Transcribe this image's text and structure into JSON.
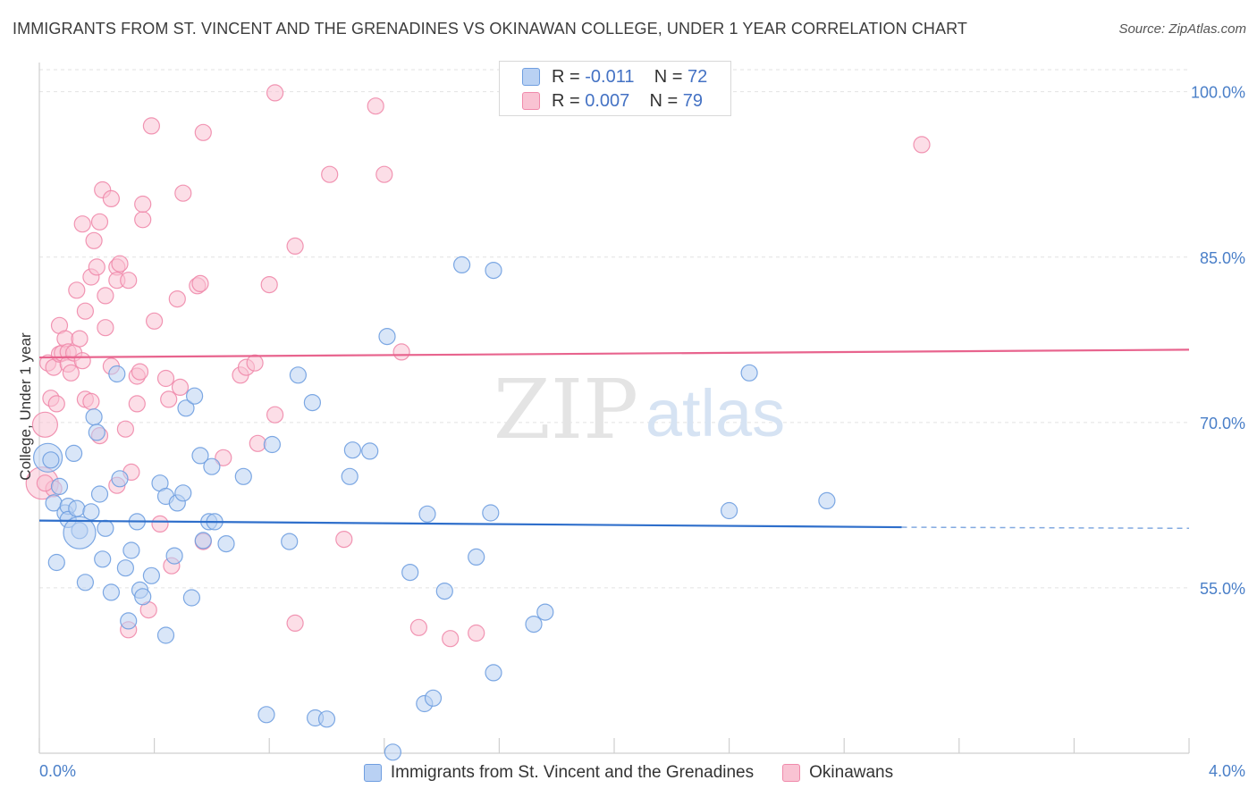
{
  "header": {
    "title": "IMMIGRANTS FROM ST. VINCENT AND THE GRENADINES VS OKINAWAN COLLEGE, UNDER 1 YEAR CORRELATION CHART",
    "source": "Source: ZipAtlas.com"
  },
  "watermark": {
    "zip": "ZIP",
    "atlas": "atlas"
  },
  "stats": [
    {
      "r_label": "R = ",
      "r_value": "-0.011",
      "n_label": "N = ",
      "n_value": "72",
      "color": "#6f9ee0",
      "fill": "#b9d1f3"
    },
    {
      "r_label": "R = ",
      "r_value": "0.007",
      "n_label": "N = ",
      "n_value": "79",
      "color": "#f08aab",
      "fill": "#f9c3d3"
    }
  ],
  "legend": [
    {
      "label": "Immigrants from St. Vincent and the Grenadines",
      "color": "#6f9ee0",
      "fill": "#b9d1f3"
    },
    {
      "label": "Okinawans",
      "color": "#f08aab",
      "fill": "#f9c3d3"
    }
  ],
  "chart_data": {
    "type": "scatter",
    "title": "IMMIGRANTS FROM ST. VINCENT AND THE GRENADINES VS OKINAWAN COLLEGE, UNDER 1 YEAR CORRELATION CHART",
    "xlabel": "",
    "ylabel": "College, Under 1 year",
    "xlim": [
      0.0,
      4.0
    ],
    "ylim": [
      40.0,
      102.0
    ],
    "x_tick_labels": [
      "0.0%",
      "4.0%"
    ],
    "y_ticks": [
      55.0,
      70.0,
      85.0,
      100.0
    ],
    "y_tick_labels": [
      "55.0%",
      "70.0%",
      "85.0%",
      "100.0%"
    ],
    "grid": true,
    "series": [
      {
        "name": "Immigrants from St. Vincent and the Grenadines",
        "color": "#6f9ee0",
        "fill": "#b9d1f3",
        "trend": {
          "x": [
            0.0,
            3.0
          ],
          "y": [
            61.1,
            60.5
          ],
          "dashed_to": 4.0,
          "dashed_y": 60.4
        },
        "points": [
          [
            0.03,
            66.8
          ],
          [
            0.05,
            62.7
          ],
          [
            0.07,
            64.2
          ],
          [
            0.06,
            57.3
          ],
          [
            0.09,
            61.8
          ],
          [
            0.1,
            62.4
          ],
          [
            0.1,
            61.2
          ],
          [
            0.12,
            67.2
          ],
          [
            0.13,
            62.2
          ],
          [
            0.14,
            60.2
          ],
          [
            0.16,
            55.5
          ],
          [
            0.18,
            61.9
          ],
          [
            0.19,
            70.5
          ],
          [
            0.2,
            69.1
          ],
          [
            0.21,
            63.5
          ],
          [
            0.22,
            57.6
          ],
          [
            0.23,
            60.4
          ],
          [
            0.25,
            54.6
          ],
          [
            0.27,
            74.4
          ],
          [
            0.28,
            64.9
          ],
          [
            0.3,
            56.8
          ],
          [
            0.31,
            52.0
          ],
          [
            0.32,
            58.4
          ],
          [
            0.34,
            61.0
          ],
          [
            0.35,
            54.8
          ],
          [
            0.36,
            54.2
          ],
          [
            0.39,
            56.1
          ],
          [
            0.42,
            64.5
          ],
          [
            0.44,
            63.3
          ],
          [
            0.44,
            50.7
          ],
          [
            0.47,
            57.9
          ],
          [
            0.48,
            62.7
          ],
          [
            0.5,
            63.6
          ],
          [
            0.51,
            71.3
          ],
          [
            0.53,
            54.1
          ],
          [
            0.54,
            72.4
          ],
          [
            0.56,
            67.0
          ],
          [
            0.57,
            59.3
          ],
          [
            0.59,
            61.0
          ],
          [
            0.6,
            66.0
          ],
          [
            0.61,
            61.0
          ],
          [
            0.65,
            59.0
          ],
          [
            0.71,
            65.1
          ],
          [
            0.79,
            43.5
          ],
          [
            0.81,
            68.0
          ],
          [
            0.87,
            59.2
          ],
          [
            0.9,
            74.3
          ],
          [
            0.95,
            71.8
          ],
          [
            0.96,
            43.2
          ],
          [
            1.0,
            43.1
          ],
          [
            1.08,
            65.1
          ],
          [
            1.09,
            67.5
          ],
          [
            1.15,
            67.4
          ],
          [
            1.21,
            77.8
          ],
          [
            1.23,
            40.1
          ],
          [
            1.29,
            56.4
          ],
          [
            1.35,
            61.7
          ],
          [
            1.34,
            44.5
          ],
          [
            1.37,
            45.0
          ],
          [
            1.41,
            54.7
          ],
          [
            1.47,
            84.3
          ],
          [
            1.52,
            57.8
          ],
          [
            1.57,
            61.8
          ],
          [
            1.58,
            47.3
          ],
          [
            1.58,
            83.8
          ],
          [
            1.72,
            51.7
          ],
          [
            1.76,
            52.8
          ],
          [
            2.4,
            62.0
          ],
          [
            2.47,
            74.5
          ],
          [
            2.74,
            62.9
          ],
          [
            0.04,
            66.6
          ],
          [
            0.14,
            60.0
          ]
        ],
        "sizes": {
          "0": 16,
          "71": 18
        }
      },
      {
        "name": "Okinawans",
        "color": "#f08aab",
        "fill": "#f9c3d3",
        "trend": {
          "x": [
            0.0,
            4.0
          ],
          "y": [
            75.9,
            76.6
          ]
        },
        "points": [
          [
            0.01,
            64.5
          ],
          [
            0.02,
            69.8
          ],
          [
            0.03,
            75.4
          ],
          [
            0.04,
            72.2
          ],
          [
            0.05,
            75.0
          ],
          [
            0.06,
            71.7
          ],
          [
            0.07,
            78.8
          ],
          [
            0.07,
            76.2
          ],
          [
            0.08,
            76.3
          ],
          [
            0.09,
            77.6
          ],
          [
            0.1,
            76.4
          ],
          [
            0.1,
            75.3
          ],
          [
            0.11,
            74.5
          ],
          [
            0.12,
            76.3
          ],
          [
            0.13,
            82.0
          ],
          [
            0.14,
            77.6
          ],
          [
            0.15,
            75.6
          ],
          [
            0.15,
            88.0
          ],
          [
            0.16,
            80.1
          ],
          [
            0.16,
            72.1
          ],
          [
            0.18,
            71.9
          ],
          [
            0.18,
            83.2
          ],
          [
            0.19,
            86.5
          ],
          [
            0.2,
            84.1
          ],
          [
            0.21,
            88.2
          ],
          [
            0.21,
            68.8
          ],
          [
            0.22,
            91.1
          ],
          [
            0.23,
            78.6
          ],
          [
            0.23,
            81.5
          ],
          [
            0.25,
            75.1
          ],
          [
            0.25,
            90.3
          ],
          [
            0.27,
            64.3
          ],
          [
            0.27,
            84.1
          ],
          [
            0.27,
            82.9
          ],
          [
            0.28,
            84.4
          ],
          [
            0.3,
            69.4
          ],
          [
            0.31,
            51.2
          ],
          [
            0.31,
            82.9
          ],
          [
            0.32,
            65.5
          ],
          [
            0.34,
            71.7
          ],
          [
            0.34,
            74.2
          ],
          [
            0.35,
            74.6
          ],
          [
            0.36,
            88.4
          ],
          [
            0.36,
            89.8
          ],
          [
            0.38,
            53.0
          ],
          [
            0.39,
            96.9
          ],
          [
            0.4,
            79.2
          ],
          [
            0.42,
            60.8
          ],
          [
            0.44,
            74.0
          ],
          [
            0.45,
            72.1
          ],
          [
            0.46,
            57.0
          ],
          [
            0.48,
            81.2
          ],
          [
            0.49,
            73.2
          ],
          [
            0.5,
            90.8
          ],
          [
            0.55,
            82.4
          ],
          [
            0.56,
            82.6
          ],
          [
            0.57,
            59.2
          ],
          [
            0.57,
            96.3
          ],
          [
            0.64,
            66.8
          ],
          [
            0.7,
            74.3
          ],
          [
            0.72,
            75.0
          ],
          [
            0.75,
            75.4
          ],
          [
            0.76,
            68.1
          ],
          [
            0.8,
            82.5
          ],
          [
            0.82,
            70.7
          ],
          [
            0.82,
            99.9
          ],
          [
            0.89,
            86.0
          ],
          [
            0.89,
            51.8
          ],
          [
            1.01,
            92.5
          ],
          [
            1.06,
            59.4
          ],
          [
            1.17,
            98.7
          ],
          [
            1.2,
            92.5
          ],
          [
            1.26,
            76.4
          ],
          [
            1.32,
            51.4
          ],
          [
            1.43,
            50.4
          ],
          [
            1.52,
            50.9
          ],
          [
            3.07,
            95.2
          ],
          [
            0.05,
            64.0
          ],
          [
            0.02,
            64.5
          ]
        ],
        "sizes": {
          "0": 18,
          "1": 14
        }
      }
    ]
  }
}
